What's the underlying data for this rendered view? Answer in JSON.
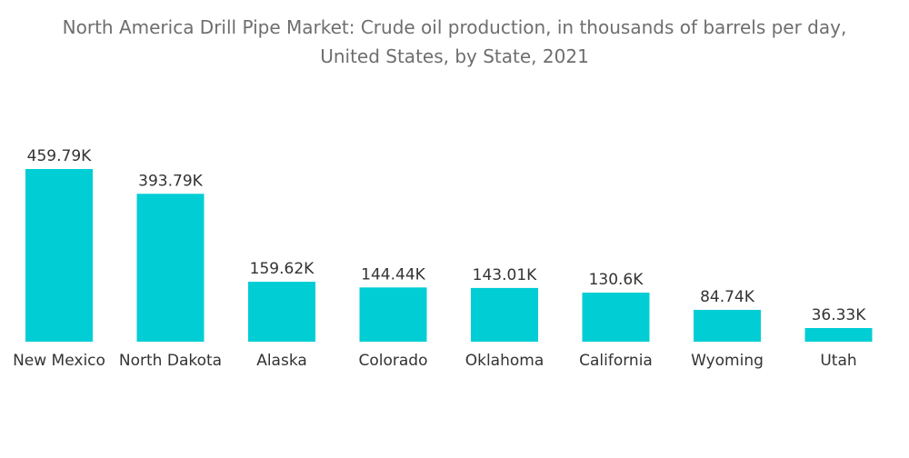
{
  "chart_data": {
    "type": "bar",
    "title": "North America Drill Pipe Market: Crude oil production, in thousands of barrels per day, United States, by State, 2021",
    "title_lines": [
      "North America Drill Pipe Market: Crude oil production, in thousands of barrels per day,",
      "United States, by State, 2021"
    ],
    "categories": [
      "New Mexico",
      "North Dakota",
      "Alaska",
      "Colorado",
      "Oklahoma",
      "California",
      "Wyoming",
      "Utah"
    ],
    "values": [
      459.79,
      393.79,
      159.62,
      144.44,
      143.01,
      130.6,
      84.74,
      36.33
    ],
    "data_labels": [
      "459.79K",
      "393.79K",
      "159.62K",
      "144.44K",
      "143.01K",
      "130.6K",
      "84.74K",
      "36.33K"
    ],
    "xlabel": "",
    "ylabel": "",
    "ylim": [
      0,
      459.79
    ],
    "grid": false,
    "legend": "none",
    "bar_color": "#00CED4"
  }
}
